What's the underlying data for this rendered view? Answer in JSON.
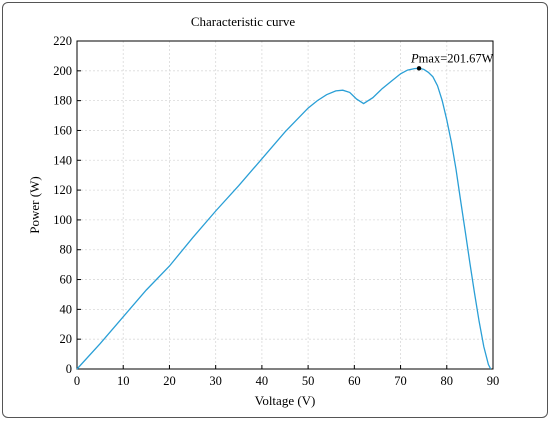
{
  "chart_data": {
    "type": "line",
    "title": "Characteristic curve",
    "xlabel": "Voltage (V)",
    "ylabel": "Power (W)",
    "xlim": [
      0,
      90
    ],
    "ylim": [
      0,
      220
    ],
    "xticks": [
      0,
      10,
      20,
      30,
      40,
      50,
      60,
      70,
      80,
      90
    ],
    "yticks": [
      0,
      20,
      40,
      60,
      80,
      100,
      120,
      140,
      160,
      180,
      200,
      220
    ],
    "grid": true,
    "series": [
      {
        "color": "#2a9fd6",
        "x": [
          0,
          5,
          10,
          15,
          20,
          25,
          30,
          35,
          40,
          45,
          50,
          52,
          54,
          56,
          57.5,
          59,
          60.5,
          62,
          64,
          66,
          68,
          70,
          71.5,
          73,
          74,
          75,
          76,
          77,
          78,
          79,
          80,
          81,
          82,
          83,
          84,
          85,
          86,
          87,
          88,
          89,
          89.5
        ],
        "y": [
          0,
          17,
          35,
          53,
          69,
          88,
          106,
          123,
          141,
          159,
          175,
          180,
          184,
          186.5,
          187,
          185.5,
          181,
          178,
          182,
          188,
          193,
          198,
          200.5,
          201.5,
          201.67,
          201,
          199,
          196,
          190,
          180,
          167,
          152,
          134,
          113,
          92,
          71,
          51,
          32,
          15,
          3,
          0
        ]
      }
    ],
    "annotation": {
      "label_italic": "P",
      "label_rest": "max=201.67W",
      "x": 74,
      "y": 201.67
    }
  }
}
